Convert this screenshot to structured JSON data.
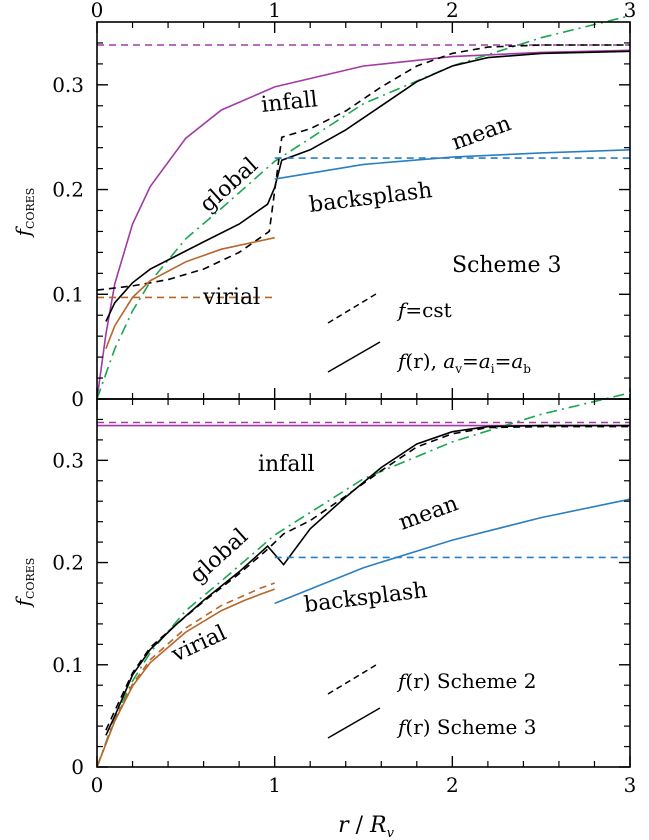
{
  "colors": {
    "infall": "#a23aa6",
    "global": "#1aa64f",
    "backsplash": "#2b7fc0",
    "virial": "#b8652a",
    "mean": "#000000"
  },
  "axes": {
    "xlabel_main": "r",
    "xlabel_sep": " / ",
    "xlabel_R": "R",
    "xlabel_sub": "v",
    "ylabel_main": "f",
    "ylabel_sub": "CORES"
  },
  "chart_data": [
    {
      "type": "line",
      "panel": "top",
      "xlim": [
        0,
        3
      ],
      "ylim": [
        0,
        0.36
      ],
      "xticks": [
        "0",
        "1",
        "2",
        "3"
      ],
      "yticks": [
        "0",
        "0.1",
        "0.2",
        "0.3"
      ],
      "xticks_top": [
        "0",
        "1",
        "2",
        "3"
      ],
      "annotations": {
        "infall": "infall",
        "global": "global",
        "mean": "mean",
        "backsplash": "backsplash",
        "virial": "virial",
        "scheme": "Scheme 3"
      },
      "legend": {
        "dashed": {
          "f": "f",
          "rest": "=cst"
        },
        "solid": {
          "f": "f",
          "r": "(r), ",
          "a": "a",
          "eq": "=",
          "sub_v": "v",
          "sub_i": "i",
          "sub_b": "b"
        }
      },
      "series": [
        {
          "name": "infall",
          "kind": "infall",
          "style": "solid",
          "x": [
            0,
            0.05,
            0.1,
            0.2,
            0.3,
            0.5,
            0.7,
            1.0,
            1.5,
            2.0,
            2.5,
            3.0
          ],
          "y": [
            0,
            0.062,
            0.11,
            0.167,
            0.203,
            0.249,
            0.276,
            0.298,
            0.318,
            0.327,
            0.331,
            0.333
          ]
        },
        {
          "name": "infall",
          "kind": "infall",
          "style": "dashed",
          "x": [
            0,
            3
          ],
          "y": [
            0.338,
            0.338
          ]
        },
        {
          "name": "global",
          "kind": "global",
          "style": "dashdot",
          "x": [
            0,
            0.1,
            0.2,
            0.3,
            0.5,
            0.7,
            1.0,
            1.5,
            2.0,
            2.5,
            3.0
          ],
          "y": [
            0,
            0.048,
            0.084,
            0.112,
            0.153,
            0.182,
            0.227,
            0.282,
            0.318,
            0.345,
            0.366
          ]
        },
        {
          "name": "mean",
          "kind": "mean",
          "style": "solid",
          "x": [
            0.05,
            0.1,
            0.2,
            0.3,
            0.45,
            0.6,
            0.8,
            0.96,
            1.0,
            1.04,
            1.2,
            1.4,
            1.6,
            1.8,
            2.0,
            2.2,
            2.5,
            3.0
          ],
          "y": [
            0.074,
            0.092,
            0.111,
            0.124,
            0.137,
            0.15,
            0.167,
            0.186,
            0.202,
            0.228,
            0.238,
            0.257,
            0.28,
            0.303,
            0.318,
            0.326,
            0.33,
            0.332
          ]
        },
        {
          "name": "mean",
          "kind": "mean",
          "style": "dashed",
          "x": [
            0,
            0.2,
            0.4,
            0.6,
            0.8,
            0.97,
            1.04,
            1.2,
            1.4,
            1.6,
            1.8,
            2.0,
            2.2,
            2.5,
            3.0
          ],
          "y": [
            0.104,
            0.108,
            0.114,
            0.124,
            0.14,
            0.16,
            0.25,
            0.258,
            0.275,
            0.298,
            0.318,
            0.33,
            0.336,
            0.338,
            0.338
          ]
        },
        {
          "name": "backsplash",
          "kind": "backsplash",
          "style": "solid",
          "x": [
            1.0,
            1.5,
            2.0,
            2.5,
            3.0
          ],
          "y": [
            0.21,
            0.224,
            0.231,
            0.235,
            0.238
          ]
        },
        {
          "name": "backsplash",
          "kind": "backsplash",
          "style": "dashed",
          "x": [
            1.0,
            3.0
          ],
          "y": [
            0.23,
            0.23
          ]
        },
        {
          "name": "virial",
          "kind": "virial",
          "style": "solid",
          "x": [
            0.05,
            0.1,
            0.2,
            0.3,
            0.5,
            0.7,
            1.0
          ],
          "y": [
            0.048,
            0.07,
            0.097,
            0.113,
            0.131,
            0.143,
            0.154
          ]
        },
        {
          "name": "virial",
          "kind": "virial",
          "style": "dashed",
          "x": [
            0,
            1.0
          ],
          "y": [
            0.097,
            0.097
          ]
        }
      ]
    },
    {
      "type": "line",
      "panel": "bottom",
      "xlim": [
        0,
        3
      ],
      "ylim": [
        0,
        0.36
      ],
      "xticks": [
        "0",
        "1",
        "2",
        "3"
      ],
      "yticks": [
        "0",
        "0.1",
        "0.2",
        "0.3"
      ],
      "annotations": {
        "infall": "infall",
        "global": "global",
        "mean": "mean",
        "backsplash": "backsplash",
        "virial": "virial"
      },
      "legend": {
        "dashed": {
          "f": "f",
          "rest": "(r) Scheme 2"
        },
        "solid": {
          "f": "f",
          "rest": "(r) Scheme 3"
        }
      },
      "series": [
        {
          "name": "infall",
          "kind": "infall",
          "style": "solid",
          "x": [
            0,
            3
          ],
          "y": [
            0.334,
            0.334
          ]
        },
        {
          "name": "infall",
          "kind": "infall",
          "style": "dashed",
          "x": [
            0,
            3
          ],
          "y": [
            0.337,
            0.337
          ]
        },
        {
          "name": "global",
          "kind": "global",
          "style": "dashdot",
          "x": [
            0,
            0.1,
            0.2,
            0.3,
            0.5,
            0.7,
            1.0,
            1.5,
            2.0,
            2.5,
            3.0
          ],
          "y": [
            0,
            0.048,
            0.084,
            0.112,
            0.153,
            0.182,
            0.227,
            0.282,
            0.318,
            0.345,
            0.366
          ]
        },
        {
          "name": "mean",
          "kind": "mean",
          "style": "solid",
          "x": [
            0.05,
            0.1,
            0.2,
            0.3,
            0.45,
            0.6,
            0.8,
            0.96,
            1.05,
            1.2,
            1.4,
            1.6,
            1.8,
            2.0,
            2.2,
            2.5,
            3.0
          ],
          "y": [
            0.031,
            0.05,
            0.09,
            0.115,
            0.14,
            0.163,
            0.191,
            0.216,
            0.198,
            0.233,
            0.264,
            0.293,
            0.316,
            0.328,
            0.333,
            0.334,
            0.334
          ]
        },
        {
          "name": "mean",
          "kind": "mean",
          "style": "dashed",
          "x": [
            0.05,
            0.1,
            0.2,
            0.3,
            0.45,
            0.6,
            0.8,
            0.96,
            1.05,
            1.2,
            1.4,
            1.6,
            1.8,
            2.0,
            2.2,
            2.5,
            3.0
          ],
          "y": [
            0.036,
            0.055,
            0.092,
            0.117,
            0.14,
            0.162,
            0.189,
            0.213,
            0.228,
            0.241,
            0.265,
            0.29,
            0.313,
            0.326,
            0.332,
            0.333,
            0.333
          ]
        },
        {
          "name": "backsplash",
          "kind": "backsplash",
          "style": "solid",
          "x": [
            1.0,
            1.5,
            2.0,
            2.5,
            3.0
          ],
          "y": [
            0.16,
            0.195,
            0.222,
            0.244,
            0.262
          ]
        },
        {
          "name": "backsplash",
          "kind": "backsplash",
          "style": "dashed",
          "x": [
            1.0,
            3.0
          ],
          "y": [
            0.205,
            0.205
          ]
        },
        {
          "name": "virial",
          "kind": "virial",
          "style": "solid",
          "x": [
            0,
            0.1,
            0.2,
            0.3,
            0.5,
            0.7,
            0.83,
            0.92,
            1.0
          ],
          "y": [
            0,
            0.045,
            0.079,
            0.102,
            0.132,
            0.153,
            0.163,
            0.169,
            0.174
          ]
        },
        {
          "name": "virial",
          "kind": "virial",
          "style": "dashed",
          "x": [
            0,
            0.1,
            0.2,
            0.3,
            0.5,
            0.7,
            0.83,
            0.92,
            1.0
          ],
          "y": [
            0,
            0.046,
            0.081,
            0.105,
            0.136,
            0.158,
            0.168,
            0.175,
            0.18
          ]
        }
      ]
    }
  ]
}
